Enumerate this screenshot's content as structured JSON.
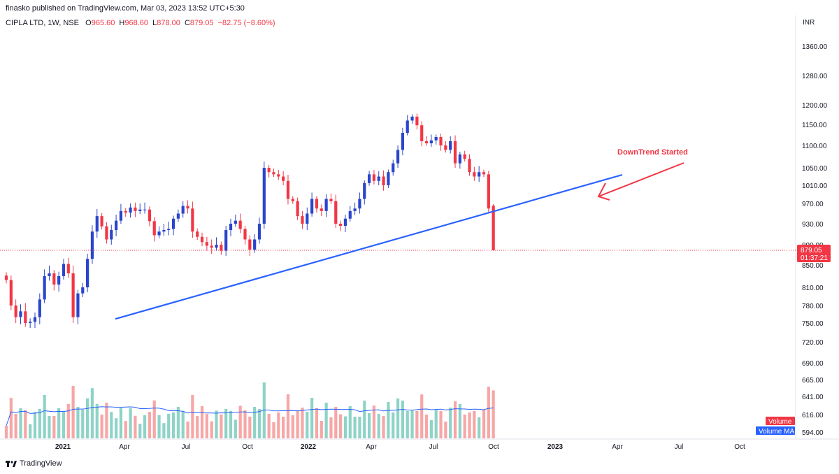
{
  "header": {
    "published": "finasko published on TradingView.com, Mar 03, 2023 13:52 UTC+5:30",
    "symbol": "CIPLA LTD, 1W, NSE",
    "ohlc": [
      {
        "label": "O",
        "value": "965.60"
      },
      {
        "label": "H",
        "value": "968.60"
      },
      {
        "label": "L",
        "value": "878.00"
      },
      {
        "label": "C",
        "value": "879.05"
      },
      {
        "label": "",
        "value": "−82.75 (−8.60%)"
      }
    ],
    "currency": "INR"
  },
  "price_badge": {
    "price": "879.05",
    "countdown": "01:37:21"
  },
  "legend_badges": {
    "volume": "Volume",
    "volume_ma": "Volume MA"
  },
  "annotation": "DownTrend Started",
  "footer": {
    "brand": "TradingView"
  },
  "colors": {
    "up": "#2a45cc",
    "down": "#f23645",
    "trendline": "#2962ff",
    "arrow": "#f23645",
    "vol_up": "#8ed3c7",
    "vol_down": "#f7a6a6",
    "vol_ma": "#2962ff"
  },
  "chart_data": {
    "type": "candlestick",
    "interval": "1W",
    "price_ticks": [
      1360,
      1280,
      1200,
      1150,
      1100,
      1050,
      1010,
      970,
      930,
      890,
      850,
      810,
      780,
      750,
      720,
      690,
      665,
      641,
      616,
      594
    ],
    "price_tick_labels": [
      "1360.00",
      "1280.00",
      "1200.00",
      "1150.00",
      "1100.00",
      "1050.00",
      "1010.00",
      "970.00",
      "930.00",
      "890.00",
      "850.00",
      "810.00",
      "780.00",
      "750.00",
      "720.00",
      "690.00",
      "665.00",
      "641.00",
      "616.00",
      "594.00"
    ],
    "x_ticks": [
      "2021",
      "Apr",
      "Jul",
      "Oct",
      "2022",
      "Apr",
      "Jul",
      "Oct",
      "2023",
      "Apr",
      "Jul",
      "Oct"
    ],
    "last_close": 879.05,
    "closes": [
      823,
      780,
      760,
      770,
      750,
      752,
      760,
      790,
      830,
      835,
      815,
      830,
      852,
      835,
      760,
      800,
      810,
      862,
      915,
      945,
      925,
      900,
      918,
      936,
      955,
      952,
      962,
      955,
      958,
      958,
      935,
      908,
      915,
      918,
      920,
      940,
      950,
      965,
      960,
      915,
      905,
      895,
      888,
      884,
      890,
      878,
      918,
      930,
      936,
      920,
      900,
      880,
      900,
      930,
      1050,
      1040,
      1035,
      1030,
      1020,
      980,
      975,
      945,
      930,
      950,
      980,
      960,
      955,
      980,
      975,
      930,
      926,
      940,
      955,
      960,
      980,
      1015,
      1035,
      1020,
      1030,
      1010,
      1040,
      1060,
      1090,
      1130,
      1160,
      1170,
      1148,
      1110,
      1105,
      1112,
      1120,
      1100,
      1090,
      1110,
      1060,
      1080,
      1070,
      1040,
      1030,
      1040,
      1035,
      960,
      879.05
    ],
    "trendline": {
      "from": {
        "week": 24,
        "price": 757
      },
      "to": {
        "week": 134,
        "price": 1040
      }
    },
    "volume": {
      "series": [
        "Volume",
        "Volume MA"
      ]
    }
  }
}
